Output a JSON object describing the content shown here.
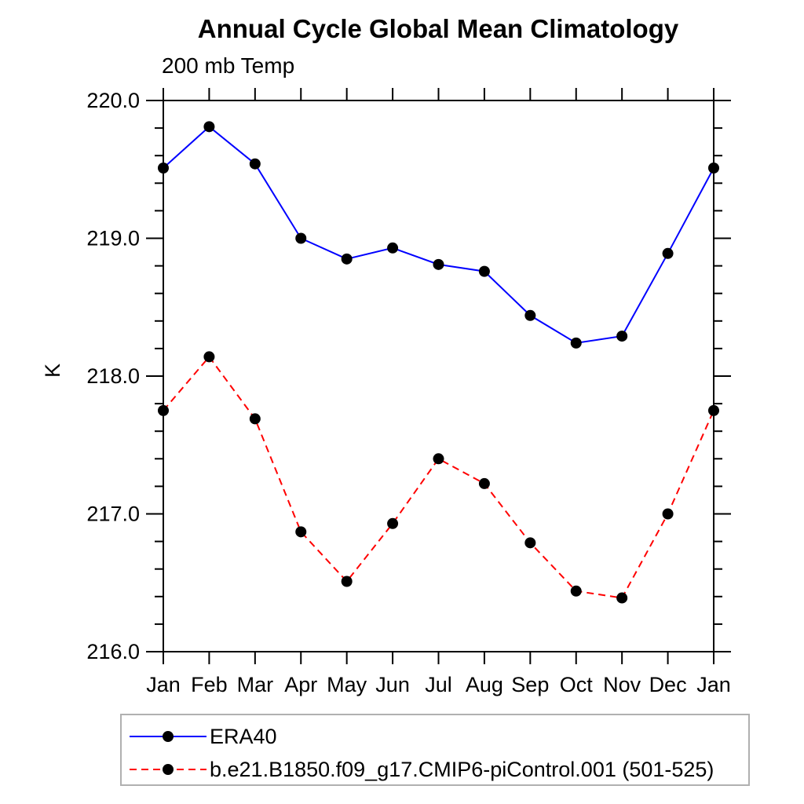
{
  "chart": {
    "title": "Annual Cycle Global Mean Climatology",
    "subtitle": "200 mb Temp",
    "ylabel": "K"
  },
  "legend": {
    "entries": [
      {
        "label": "ERA40",
        "color": "#0000ff",
        "line_style": "solid",
        "marker": "filled-circle"
      },
      {
        "label": "b.e21.B1850.f09_g17.CMIP6-piControl.001 (501-525)",
        "color": "#ff0000",
        "line_style": "dashed",
        "marker": "filled-circle"
      }
    ]
  },
  "chart_data": {
    "type": "line",
    "title": "Annual Cycle Global Mean Climatology",
    "subtitle": "200 mb Temp",
    "xlabel": "",
    "ylabel": "K",
    "categories": [
      "Jan",
      "Feb",
      "Mar",
      "Apr",
      "May",
      "Jun",
      "Jul",
      "Aug",
      "Sep",
      "Oct",
      "Nov",
      "Dec",
      "Jan"
    ],
    "ylim": [
      216.0,
      220.0
    ],
    "yticks": [
      "220.0",
      "219.0",
      "218.0",
      "217.0",
      "216.0"
    ],
    "ytick_values": [
      220.0,
      219.0,
      218.0,
      217.0,
      216.0
    ],
    "minor_tick_interval": 0.2,
    "grid": false,
    "legend_position": "bottom",
    "marker_color": "#000000",
    "axis_color": "#000000",
    "series": [
      {
        "name": "ERA40",
        "color": "#0000ff",
        "line_style": "solid",
        "values": [
          219.51,
          219.81,
          219.54,
          219.0,
          218.85,
          218.93,
          218.81,
          218.76,
          218.44,
          218.24,
          218.29,
          218.89,
          219.51
        ]
      },
      {
        "name": "b.e21.B1850.f09_g17.CMIP6-piControl.001 (501-525)",
        "color": "#ff0000",
        "line_style": "dashed",
        "values": [
          217.75,
          218.14,
          217.69,
          216.87,
          216.51,
          216.93,
          217.4,
          217.22,
          216.79,
          216.44,
          216.39,
          217.0,
          217.75
        ]
      }
    ]
  }
}
